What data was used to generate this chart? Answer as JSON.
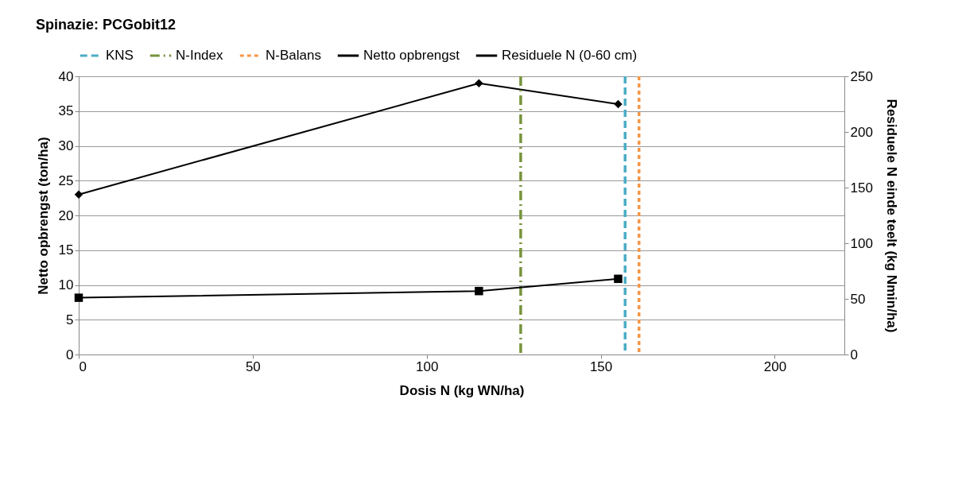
{
  "chart_data": {
    "type": "line",
    "title": "Spinazie: PCGobit12",
    "xlabel": "Dosis N (kg WN/ha)",
    "ylabel": "Netto opbrengst (ton/ha)",
    "y2label": "Residuele N einde teelt (kg Nmin/ha)",
    "x": [
      0,
      115,
      155
    ],
    "series": [
      {
        "name": "Netto opbrengst",
        "color": "#000000",
        "marker": "diamond",
        "values": [
          23,
          39,
          36
        ]
      },
      {
        "name": "Residuele N (0-60 cm)",
        "color": "#000000",
        "marker": "square",
        "axis": "y2",
        "values": [
          51,
          57,
          68
        ]
      }
    ],
    "ref_lines": [
      {
        "axis": "x",
        "value": 157,
        "label": "KNS",
        "color": "#4bacc6",
        "line_style": "dashed"
      },
      {
        "axis": "x",
        "value": 127,
        "label": "N-Index",
        "color": "#77933c",
        "line_style": "dashdot"
      },
      {
        "axis": "x",
        "value": 161,
        "label": "N-Balans",
        "color": "#f79646",
        "line_style": "dotted"
      }
    ],
    "xlim": [
      0,
      220
    ],
    "xticks": [
      0,
      50,
      100,
      150,
      200
    ],
    "ylim": [
      0,
      40
    ],
    "yticks": [
      0,
      5,
      10,
      15,
      20,
      25,
      30,
      35,
      40
    ],
    "y2lim": [
      0,
      250
    ],
    "y2ticks": [
      0,
      50,
      100,
      150,
      200,
      250
    ],
    "grid": "y",
    "legend": "top",
    "line_style": "solid"
  }
}
